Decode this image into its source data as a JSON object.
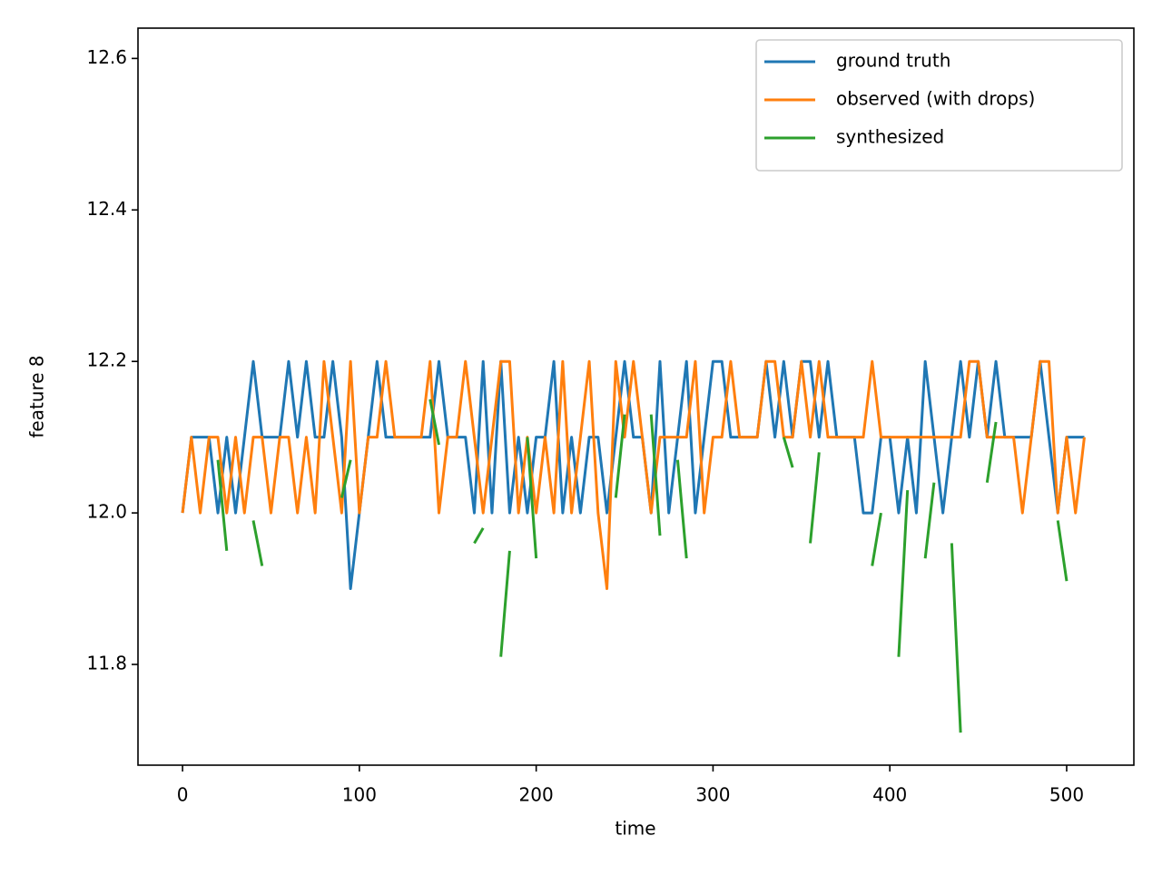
{
  "chart_data": {
    "type": "line",
    "xlabel": "time",
    "ylabel": "feature 8",
    "x": [
      0,
      5,
      10,
      15,
      20,
      25,
      30,
      35,
      40,
      45,
      50,
      55,
      60,
      65,
      70,
      75,
      80,
      85,
      90,
      95,
      100,
      105,
      110,
      115,
      120,
      125,
      130,
      135,
      140,
      145,
      150,
      155,
      160,
      165,
      170,
      175,
      180,
      185,
      190,
      195,
      200,
      205,
      210,
      215,
      220,
      225,
      230,
      235,
      240,
      245,
      250,
      255,
      260,
      265,
      270,
      275,
      280,
      285,
      290,
      295,
      300,
      305,
      310,
      315,
      320,
      325,
      330,
      335,
      340,
      345,
      350,
      355,
      360,
      365,
      370,
      375,
      380,
      385,
      390,
      395,
      400,
      405,
      410,
      415,
      420,
      425,
      430,
      435,
      440,
      445,
      450,
      455,
      460,
      465,
      470,
      475,
      480,
      485,
      490,
      495,
      500,
      505,
      510
    ],
    "series": [
      {
        "name": "ground truth",
        "color": "#1f77b4",
        "values": [
          12.0,
          12.1,
          12.1,
          12.1,
          12.0,
          12.1,
          12.0,
          12.1,
          12.2,
          12.1,
          12.1,
          12.1,
          12.2,
          12.1,
          12.2,
          12.1,
          12.1,
          12.2,
          12.1,
          11.9,
          12.0,
          12.1,
          12.2,
          12.1,
          12.1,
          12.1,
          12.1,
          12.1,
          12.1,
          12.2,
          12.1,
          12.1,
          12.1,
          12.0,
          12.2,
          12.0,
          12.2,
          12.0,
          12.1,
          12.0,
          12.1,
          12.1,
          12.2,
          12.0,
          12.1,
          12.0,
          12.1,
          12.1,
          12.0,
          12.1,
          12.2,
          12.1,
          12.1,
          12.0,
          12.2,
          12.0,
          12.1,
          12.2,
          12.0,
          12.1,
          12.2,
          12.2,
          12.1,
          12.1,
          12.1,
          12.1,
          12.2,
          12.1,
          12.2,
          12.1,
          12.2,
          12.2,
          12.1,
          12.2,
          12.1,
          12.1,
          12.1,
          12.0,
          12.0,
          12.1,
          12.1,
          12.0,
          12.1,
          12.0,
          12.2,
          12.1,
          12.0,
          12.1,
          12.2,
          12.1,
          12.2,
          12.1,
          12.2,
          12.1,
          12.1,
          12.1,
          12.1,
          12.2,
          12.1,
          12.0,
          12.1,
          12.1,
          12.1
        ]
      },
      {
        "name": "observed (with drops)",
        "color": "#ff7f0e",
        "values": [
          12.0,
          12.1,
          12.0,
          12.1,
          12.1,
          12.0,
          12.1,
          12.0,
          12.1,
          12.1,
          12.0,
          12.1,
          12.1,
          12.0,
          12.1,
          12.0,
          12.2,
          12.1,
          12.0,
          12.2,
          12.0,
          12.1,
          12.1,
          12.2,
          12.1,
          12.1,
          12.1,
          12.1,
          12.2,
          12.0,
          12.1,
          12.1,
          12.2,
          12.1,
          12.0,
          12.1,
          12.2,
          12.2,
          12.0,
          12.1,
          12.0,
          12.1,
          12.0,
          12.2,
          12.0,
          12.1,
          12.2,
          12.0,
          11.9,
          12.2,
          12.1,
          12.2,
          12.1,
          12.0,
          12.1,
          12.1,
          12.1,
          12.1,
          12.2,
          12.0,
          12.1,
          12.1,
          12.2,
          12.1,
          12.1,
          12.1,
          12.2,
          12.2,
          12.1,
          12.1,
          12.2,
          12.1,
          12.2,
          12.1,
          12.1,
          12.1,
          12.1,
          12.1,
          12.2,
          12.1,
          12.1,
          12.1,
          12.1,
          12.1,
          12.1,
          12.1,
          12.1,
          12.1,
          12.1,
          12.2,
          12.2,
          12.1,
          12.1,
          12.1,
          12.1,
          12.0,
          12.1,
          12.2,
          12.2,
          12.0,
          12.1,
          12.0,
          12.1
        ]
      },
      {
        "name": "synthesized",
        "color": "#2ca02c",
        "values": [
          null,
          null,
          null,
          null,
          12.07,
          11.95,
          null,
          null,
          11.99,
          11.93,
          null,
          null,
          null,
          null,
          null,
          null,
          null,
          null,
          12.02,
          12.07,
          null,
          null,
          null,
          null,
          null,
          null,
          null,
          null,
          12.15,
          12.09,
          null,
          null,
          null,
          11.96,
          11.98,
          null,
          11.81,
          11.95,
          null,
          12.1,
          11.94,
          null,
          null,
          null,
          null,
          null,
          null,
          null,
          null,
          12.02,
          12.13,
          null,
          null,
          12.13,
          11.97,
          null,
          12.07,
          11.94,
          null,
          null,
          null,
          null,
          null,
          null,
          null,
          null,
          null,
          null,
          12.1,
          12.06,
          null,
          11.96,
          12.08,
          null,
          null,
          null,
          null,
          null,
          11.93,
          12.0,
          null,
          11.81,
          12.03,
          null,
          11.94,
          12.04,
          null,
          11.96,
          11.71,
          null,
          null,
          12.04,
          12.12,
          null,
          null,
          null,
          null,
          null,
          null,
          11.99,
          11.91,
          null,
          null
        ]
      }
    ],
    "xlim": [
      -25.2,
      538
    ],
    "ylim": [
      11.667,
      12.64
    ],
    "xticks": [
      0,
      100,
      200,
      300,
      400,
      500
    ],
    "yticks": [
      11.8,
      {
        "value": 12,
        "label": "12.0"
      },
      12.2,
      12.4,
      12.6
    ],
    "legend": "upper right"
  }
}
